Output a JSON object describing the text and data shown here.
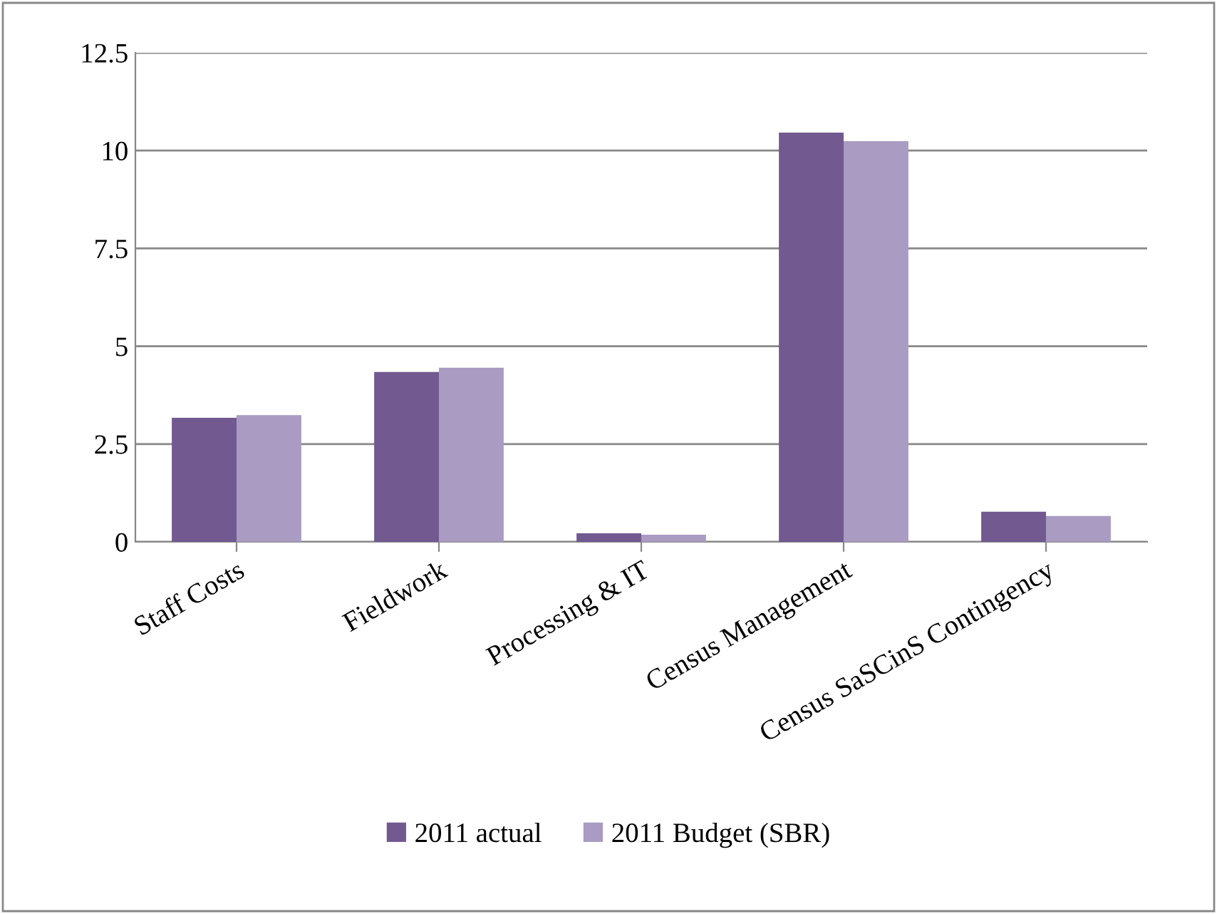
{
  "chart_data": {
    "type": "bar",
    "categories": [
      "Staff Costs",
      "Fieldwork",
      "Processing & IT",
      "Census Management",
      "Census SaSCinS Contingency"
    ],
    "series": [
      {
        "name": "2011 actual",
        "color": "#725990",
        "values": [
          3.17,
          4.34,
          0.22,
          10.46,
          0.77
        ]
      },
      {
        "name": "2011 Budget (SBR)",
        "color": "#a99bc2",
        "values": [
          3.24,
          4.45,
          0.18,
          10.24,
          0.66
        ]
      }
    ],
    "ylim": [
      0,
      12.5
    ],
    "yticks": [
      0,
      2.5,
      5,
      7.5,
      10,
      12.5
    ],
    "grid": "y",
    "legend": "bottom"
  }
}
